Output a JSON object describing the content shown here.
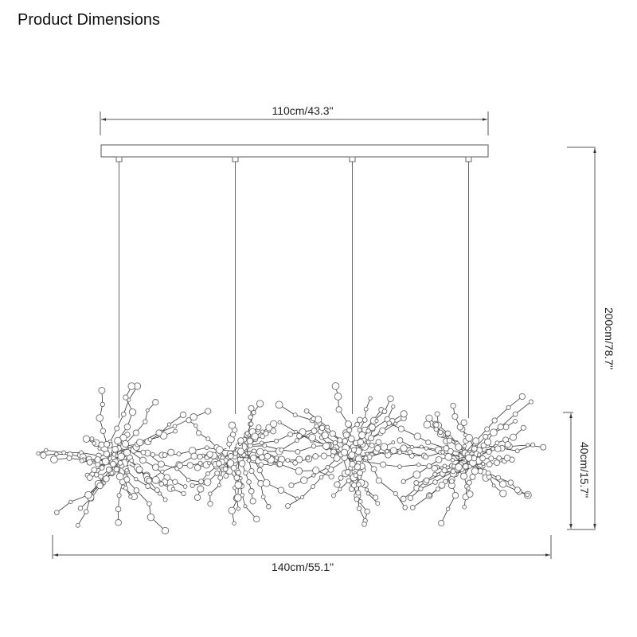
{
  "header": {
    "title": "Product Dimensions"
  },
  "dimensions": {
    "canopy_width": "110cm/43.3\"",
    "total_height": "200cm/78.7\"",
    "fixture_height": "40cm/15.7\"",
    "fixture_width": "140cm/55.1\""
  },
  "colors": {
    "line": "#555555",
    "fixture": "#6a6a6a"
  }
}
